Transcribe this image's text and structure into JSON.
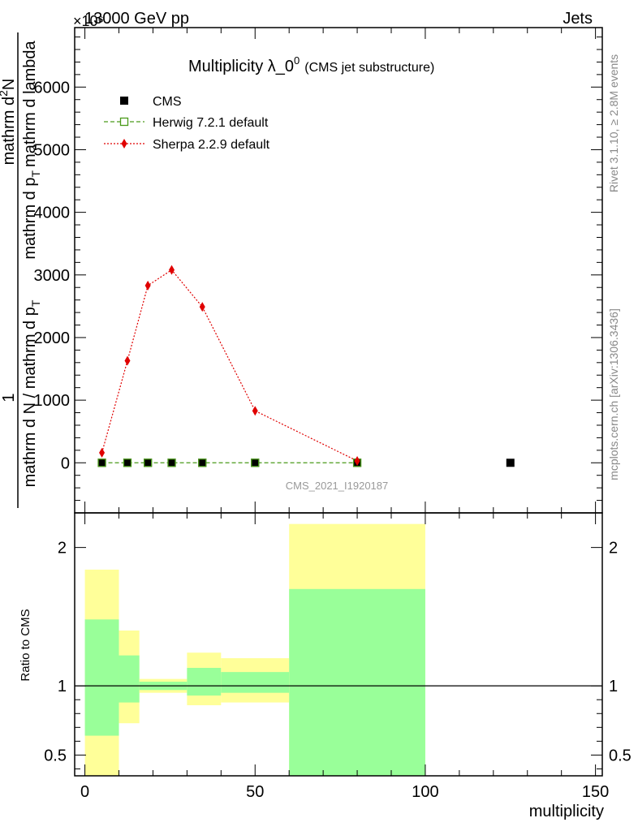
{
  "header": {
    "left": "13000 GeV pp",
    "right": "Jets",
    "exponent": "×10⁶",
    "rivet": "Rivet 3.1.10, ≥ 2.8M events",
    "mcplots": "mcplots.cern.ch [arXiv:1306.3436]",
    "watermark": "CMS_2021_I1920187"
  },
  "colors": {
    "cms": "#000000",
    "herwig": "#4a9a1a",
    "sherpa": "#e00000",
    "band_outer": "#ffff99",
    "band_inner": "#99ff99"
  },
  "chart_data": [
    {
      "type": "line",
      "title": "Multiplicity λ_0",
      "title_sup": "0",
      "title_suffix": "(CMS jet substructure)",
      "ylabel": "1 / mathrm d N / mathrm d p_T mathrm d^2N / mathrm d p_T mathrm d lambda",
      "ylabel_parts": {
        "left_top": "1",
        "left_bottom": "mathrm d N / mathrm d p",
        "left_sub": "T",
        "right_top": "mathrm d",
        "right_top_sup": "2",
        "right_top_end": "N",
        "right_bottom": "mathrm d p",
        "right_sub": "T",
        "right_bottom_end": "mathrm d lambda"
      },
      "xlim": [
        -3,
        152
      ],
      "ylim": [
        -800,
        6950
      ],
      "yticks": [
        0,
        1000,
        2000,
        3000,
        4000,
        5000,
        6000
      ],
      "ytick_labels": [
        "0",
        "1000",
        "2000",
        "3000",
        "4000",
        "5000",
        "6000"
      ],
      "legend": [
        {
          "key": "cms",
          "label": "CMS"
        },
        {
          "key": "herwig",
          "label": "Herwig 7.2.1 default"
        },
        {
          "key": "sherpa",
          "label": "Sherpa 2.2.9 default"
        }
      ],
      "series": [
        {
          "name": "CMS",
          "key": "cms",
          "x": [
            5,
            12.5,
            18.5,
            25.5,
            34.5,
            50,
            80,
            125
          ],
          "y": [
            0,
            0,
            0,
            0,
            0,
            0,
            0,
            0
          ]
        },
        {
          "name": "Herwig 7.2.1 default",
          "key": "herwig",
          "x": [
            5,
            12.5,
            18.5,
            25.5,
            34.5,
            50,
            80
          ],
          "y": [
            0,
            0,
            0,
            0,
            0,
            0,
            0
          ]
        },
        {
          "name": "Sherpa 2.2.9 default",
          "key": "sherpa",
          "x": [
            5,
            12.5,
            18.5,
            25.5,
            34.5,
            50,
            80
          ],
          "y": [
            160,
            1630,
            2830,
            3080,
            2490,
            830,
            30
          ]
        }
      ]
    },
    {
      "type": "area",
      "ylabel": "Ratio to CMS",
      "xlabel": "multiplicity",
      "xlim": [
        -3,
        152
      ],
      "ylim": [
        0.35,
        2.25
      ],
      "xticks": [
        0,
        50,
        100,
        150
      ],
      "xtick_labels": [
        "0",
        "50",
        "100",
        "150"
      ],
      "yticks": [
        0.5,
        1,
        2
      ],
      "ytick_labels": [
        "0.5",
        "1",
        "2"
      ],
      "reference_line": 1,
      "bands": [
        {
          "x0": 0,
          "x1": 10,
          "outer": [
            0.35,
            1.84
          ],
          "inner": [
            0.64,
            1.48
          ]
        },
        {
          "x0": 10,
          "x1": 16,
          "outer": [
            0.73,
            1.4
          ],
          "inner": [
            0.88,
            1.22
          ]
        },
        {
          "x0": 16,
          "x1": 30,
          "outer": [
            0.95,
            1.05
          ],
          "inner": [
            0.97,
            1.03
          ]
        },
        {
          "x0": 30,
          "x1": 40,
          "outer": [
            0.86,
            1.24
          ],
          "inner": [
            0.93,
            1.13
          ]
        },
        {
          "x0": 40,
          "x1": 60,
          "outer": [
            0.88,
            1.2
          ],
          "inner": [
            0.95,
            1.1
          ]
        },
        {
          "x0": 60,
          "x1": 100,
          "outer": [
            0.35,
            2.17
          ],
          "inner": [
            0.35,
            1.7
          ]
        }
      ]
    }
  ]
}
